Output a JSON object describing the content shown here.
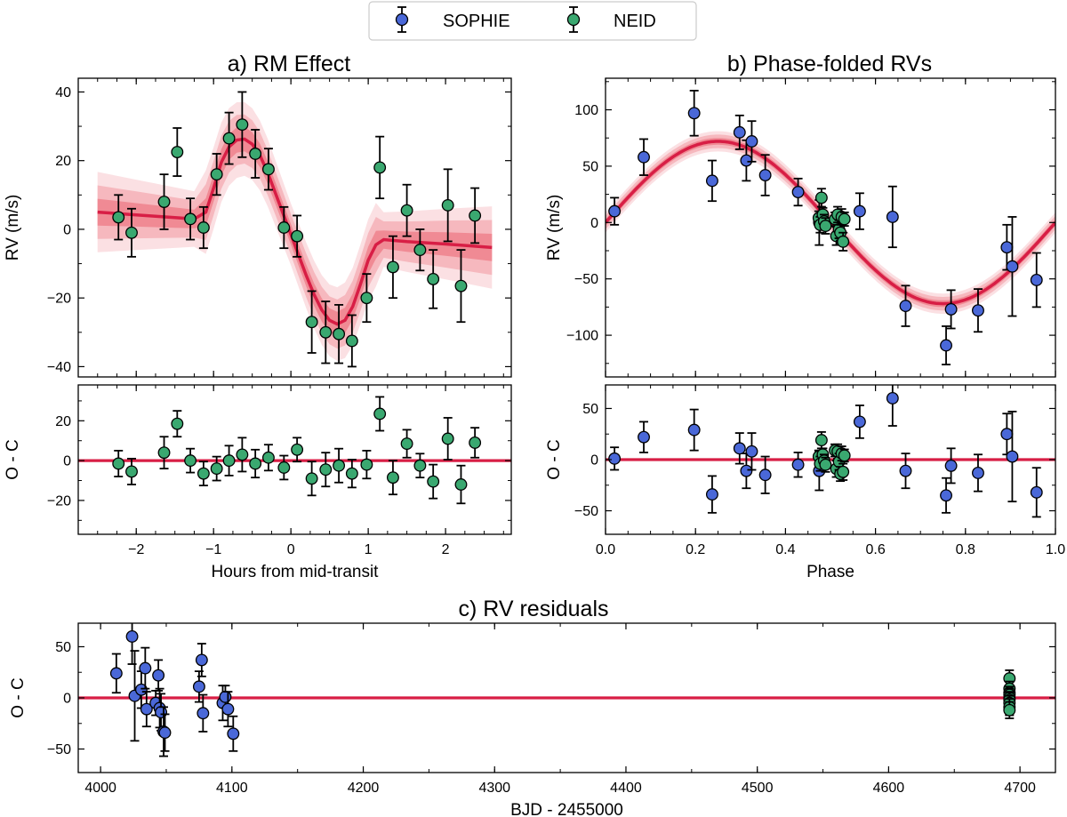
{
  "colors": {
    "sophie": "#4a68d8",
    "neid": "#3aa870",
    "model": "#d81e45",
    "band_inner": "#f08a94",
    "band_mid": "#f6b8be",
    "band_outer": "#fbe0e3"
  },
  "legend": {
    "placement": "top-center",
    "entries": [
      "SOPHIE",
      "NEID"
    ]
  },
  "chart_data": [
    {
      "id": "rm",
      "type": "scatter",
      "title": "a) RM Effect",
      "ylabel": "RV (m/s)",
      "xlim": [
        -2.75,
        2.85
      ],
      "ylim": [
        -43,
        44
      ],
      "xticks": [],
      "yticks": [
        -40,
        -20,
        0,
        20,
        40
      ],
      "series": [
        {
          "name": "NEID",
          "points": [
            {
              "x": -2.23,
              "y": 3.5,
              "err": 6.5
            },
            {
              "x": -2.06,
              "y": -1.0,
              "err": 7.0
            },
            {
              "x": -1.64,
              "y": 8.0,
              "err": 8.0
            },
            {
              "x": -1.47,
              "y": 22.5,
              "err": 7.0
            },
            {
              "x": -1.3,
              "y": 3.0,
              "err": 6.0
            },
            {
              "x": -1.13,
              "y": 0.5,
              "err": 6.0
            },
            {
              "x": -0.96,
              "y": 16.0,
              "err": 6.0
            },
            {
              "x": -0.8,
              "y": 26.5,
              "err": 7.5
            },
            {
              "x": -0.63,
              "y": 30.5,
              "err": 9.5
            },
            {
              "x": -0.46,
              "y": 22.0,
              "err": 7.0
            },
            {
              "x": -0.29,
              "y": 17.5,
              "err": 6.0
            },
            {
              "x": -0.09,
              "y": 0.5,
              "err": 6.0
            },
            {
              "x": 0.08,
              "y": -2.0,
              "err": 6.0
            },
            {
              "x": 0.27,
              "y": -27.0,
              "err": 9.0
            },
            {
              "x": 0.45,
              "y": -30.0,
              "err": 9.0
            },
            {
              "x": 0.62,
              "y": -30.5,
              "err": 8.5
            },
            {
              "x": 0.79,
              "y": -32.5,
              "err": 7.5
            },
            {
              "x": 0.98,
              "y": -20.0,
              "err": 7.0
            },
            {
              "x": 1.15,
              "y": 18.0,
              "err": 9.0
            },
            {
              "x": 1.32,
              "y": -11.0,
              "err": 9.0
            },
            {
              "x": 1.5,
              "y": 5.5,
              "err": 7.5
            },
            {
              "x": 1.67,
              "y": -6.0,
              "err": 6.0
            },
            {
              "x": 1.84,
              "y": -14.5,
              "err": 8.5
            },
            {
              "x": 2.03,
              "y": 7.0,
              "err": 10.5
            },
            {
              "x": 2.2,
              "y": -16.5,
              "err": 10.5
            },
            {
              "x": 2.38,
              "y": 4.0,
              "err": 8.0
            }
          ]
        }
      ],
      "model": {
        "x": [
          -2.5,
          -2.0,
          -1.5,
          -1.25,
          -1.1,
          -1.0,
          -0.9,
          -0.8,
          -0.7,
          -0.6,
          -0.5,
          -0.4,
          -0.3,
          -0.2,
          -0.1,
          0.0,
          0.1,
          0.2,
          0.3,
          0.4,
          0.5,
          0.6,
          0.7,
          0.8,
          0.9,
          1.0,
          1.1,
          1.2,
          1.5,
          2.0,
          2.6
        ],
        "y": [
          5.0,
          4.2,
          3.4,
          3.0,
          5.0,
          12.0,
          19.5,
          24.0,
          26.0,
          26.3,
          24.8,
          21.5,
          16.5,
          10.5,
          4.5,
          -1.5,
          -7.5,
          -13.5,
          -19.0,
          -23.5,
          -26.5,
          -27.6,
          -26.5,
          -22.5,
          -16.0,
          -9.0,
          -4.5,
          -3.0,
          -3.6,
          -4.3,
          -5.3
        ]
      }
    },
    {
      "id": "rm_resid",
      "type": "scatter",
      "xlabel": "Hours from mid-transit",
      "ylabel": "O - C",
      "xlim": [
        -2.75,
        2.85
      ],
      "ylim": [
        -37,
        38
      ],
      "xticks": [
        -2,
        -1,
        0,
        1,
        2
      ],
      "yticks": [
        -20,
        0,
        20
      ],
      "series": [
        {
          "name": "NEID",
          "points": [
            {
              "x": -2.23,
              "y": -1.5,
              "err": 6.5
            },
            {
              "x": -2.06,
              "y": -5.5,
              "err": 6.5
            },
            {
              "x": -1.64,
              "y": 4.0,
              "err": 8.0
            },
            {
              "x": -1.47,
              "y": 18.5,
              "err": 6.5
            },
            {
              "x": -1.3,
              "y": 0.0,
              "err": 6.0
            },
            {
              "x": -1.13,
              "y": -6.5,
              "err": 6.0
            },
            {
              "x": -0.96,
              "y": -4.0,
              "err": 6.0
            },
            {
              "x": -0.8,
              "y": 0.0,
              "err": 7.5
            },
            {
              "x": -0.63,
              "y": 3.0,
              "err": 8.5
            },
            {
              "x": -0.46,
              "y": -1.5,
              "err": 7.0
            },
            {
              "x": -0.29,
              "y": 1.5,
              "err": 6.5
            },
            {
              "x": -0.09,
              "y": -3.5,
              "err": 6.0
            },
            {
              "x": 0.08,
              "y": 5.5,
              "err": 6.0
            },
            {
              "x": 0.27,
              "y": -9.0,
              "err": 8.5
            },
            {
              "x": 0.45,
              "y": -4.5,
              "err": 8.5
            },
            {
              "x": 0.62,
              "y": -2.5,
              "err": 8.5
            },
            {
              "x": 0.79,
              "y": -6.5,
              "err": 7.0
            },
            {
              "x": 0.98,
              "y": -2.0,
              "err": 7.0
            },
            {
              "x": 1.15,
              "y": 23.5,
              "err": 8.5
            },
            {
              "x": 1.32,
              "y": -8.5,
              "err": 8.5
            },
            {
              "x": 1.5,
              "y": 8.5,
              "err": 7.0
            },
            {
              "x": 1.67,
              "y": -2.5,
              "err": 6.0
            },
            {
              "x": 1.84,
              "y": -10.5,
              "err": 8.5
            },
            {
              "x": 2.03,
              "y": 11.0,
              "err": 10.5
            },
            {
              "x": 2.2,
              "y": -12.0,
              "err": 9.5
            },
            {
              "x": 2.38,
              "y": 9.0,
              "err": 7.5
            }
          ]
        }
      ],
      "zero_line": true
    },
    {
      "id": "phase",
      "type": "scatter",
      "title": "b) Phase-folded RVs",
      "ylabel": "RV (m/s)",
      "xlim": [
        0.0,
        1.0
      ],
      "ylim": [
        -137,
        128
      ],
      "xticks": [],
      "yticks": [
        -100,
        -50,
        0,
        50,
        100
      ],
      "model": {
        "type": "sine",
        "amplitude": 72,
        "period": 1.0
      },
      "series": [
        {
          "name": "SOPHIE",
          "points": [
            {
              "x": 0.02,
              "y": 10,
              "err": 12
            },
            {
              "x": 0.085,
              "y": 58,
              "err": 16
            },
            {
              "x": 0.197,
              "y": 97,
              "err": 20
            },
            {
              "x": 0.237,
              "y": 37,
              "err": 18
            },
            {
              "x": 0.298,
              "y": 80,
              "err": 15
            },
            {
              "x": 0.313,
              "y": 55,
              "err": 18
            },
            {
              "x": 0.325,
              "y": 72,
              "err": 18
            },
            {
              "x": 0.355,
              "y": 42,
              "err": 18
            },
            {
              "x": 0.428,
              "y": 27,
              "err": 12
            },
            {
              "x": 0.475,
              "y": 0,
              "err": 20
            },
            {
              "x": 0.565,
              "y": 10,
              "err": 16
            },
            {
              "x": 0.638,
              "y": 5,
              "err": 27
            },
            {
              "x": 0.667,
              "y": -74,
              "err": 18
            },
            {
              "x": 0.757,
              "y": -109,
              "err": 17
            },
            {
              "x": 0.768,
              "y": -77,
              "err": 17
            },
            {
              "x": 0.828,
              "y": -78,
              "err": 19
            },
            {
              "x": 0.892,
              "y": -22,
              "err": 20
            },
            {
              "x": 0.904,
              "y": -39,
              "err": 44
            },
            {
              "x": 0.958,
              "y": -51,
              "err": 24
            }
          ]
        },
        {
          "name": "NEID",
          "points": [
            {
              "x": 0.474,
              "y": 4,
              "err": 6
            },
            {
              "x": 0.477,
              "y": -2,
              "err": 7
            },
            {
              "x": 0.48,
              "y": 22,
              "err": 8
            },
            {
              "x": 0.483,
              "y": 7,
              "err": 6
            },
            {
              "x": 0.486,
              "y": 1,
              "err": 6
            },
            {
              "x": 0.489,
              "y": -3,
              "err": 7
            },
            {
              "x": 0.51,
              "y": 3,
              "err": 6
            },
            {
              "x": 0.513,
              "y": -12,
              "err": 8
            },
            {
              "x": 0.516,
              "y": 7,
              "err": 7
            },
            {
              "x": 0.519,
              "y": -6,
              "err": 8
            },
            {
              "x": 0.522,
              "y": -9,
              "err": 7
            },
            {
              "x": 0.525,
              "y": 5,
              "err": 7
            },
            {
              "x": 0.528,
              "y": -17,
              "err": 8
            },
            {
              "x": 0.531,
              "y": 3,
              "err": 6
            }
          ]
        }
      ]
    },
    {
      "id": "phase_resid",
      "type": "scatter",
      "xlabel": "Phase",
      "ylabel": "O - C",
      "xlim": [
        0.0,
        1.0
      ],
      "ylim": [
        -73,
        73
      ],
      "xticks": [
        0.0,
        0.2,
        0.4,
        0.6,
        0.8,
        1.0
      ],
      "yticks": [
        -50,
        0,
        50
      ],
      "zero_line": true,
      "series": [
        {
          "name": "SOPHIE",
          "points": [
            {
              "x": 0.02,
              "y": 1,
              "err": 11
            },
            {
              "x": 0.085,
              "y": 22,
              "err": 15
            },
            {
              "x": 0.197,
              "y": 29,
              "err": 20
            },
            {
              "x": 0.237,
              "y": -34,
              "err": 18
            },
            {
              "x": 0.298,
              "y": 11,
              "err": 15
            },
            {
              "x": 0.313,
              "y": -11,
              "err": 17
            },
            {
              "x": 0.325,
              "y": 8,
              "err": 18
            },
            {
              "x": 0.355,
              "y": -15,
              "err": 18
            },
            {
              "x": 0.428,
              "y": -5,
              "err": 12
            },
            {
              "x": 0.475,
              "y": -11,
              "err": 19
            },
            {
              "x": 0.565,
              "y": 37,
              "err": 16
            },
            {
              "x": 0.638,
              "y": 60,
              "err": 27
            },
            {
              "x": 0.667,
              "y": -11,
              "err": 17
            },
            {
              "x": 0.757,
              "y": -35,
              "err": 17
            },
            {
              "x": 0.768,
              "y": -6,
              "err": 17
            },
            {
              "x": 0.828,
              "y": -13,
              "err": 18
            },
            {
              "x": 0.892,
              "y": 25,
              "err": 20
            },
            {
              "x": 0.904,
              "y": 3,
              "err": 44
            },
            {
              "x": 0.958,
              "y": -32,
              "err": 24
            }
          ]
        },
        {
          "name": "NEID",
          "points": [
            {
              "x": 0.474,
              "y": 3,
              "err": 6
            },
            {
              "x": 0.477,
              "y": -4,
              "err": 7
            },
            {
              "x": 0.48,
              "y": 19,
              "err": 8
            },
            {
              "x": 0.483,
              "y": 5,
              "err": 6
            },
            {
              "x": 0.486,
              "y": -1,
              "err": 6
            },
            {
              "x": 0.489,
              "y": -5,
              "err": 7
            },
            {
              "x": 0.51,
              "y": 9,
              "err": 6
            },
            {
              "x": 0.513,
              "y": -9,
              "err": 8
            },
            {
              "x": 0.516,
              "y": 8,
              "err": 7
            },
            {
              "x": 0.519,
              "y": -2,
              "err": 8
            },
            {
              "x": 0.522,
              "y": -14,
              "err": 7
            },
            {
              "x": 0.525,
              "y": 6,
              "err": 7
            },
            {
              "x": 0.528,
              "y": -12,
              "err": 8
            },
            {
              "x": 0.531,
              "y": 4,
              "err": 6
            }
          ]
        }
      ]
    },
    {
      "id": "time_resid",
      "type": "scatter",
      "title": "c) RV residuals",
      "xlabel": "BJD - 2455000",
      "ylabel": "O - C",
      "xlim": [
        3983,
        4727
      ],
      "ylim": [
        -73,
        73
      ],
      "xticks": [
        4000,
        4100,
        4200,
        4300,
        4400,
        4500,
        4600,
        4700
      ],
      "yticks": [
        -50,
        0,
        50
      ],
      "zero_line": true,
      "series": [
        {
          "name": "SOPHIE",
          "points": [
            {
              "x": 4012,
              "y": 24,
              "err": 19
            },
            {
              "x": 4024,
              "y": 60,
              "err": 27
            },
            {
              "x": 4026,
              "y": 2,
              "err": 44
            },
            {
              "x": 4031,
              "y": 8,
              "err": 18
            },
            {
              "x": 4034,
              "y": 29,
              "err": 20
            },
            {
              "x": 4035,
              "y": -11,
              "err": 17
            },
            {
              "x": 4042,
              "y": -5,
              "err": 12
            },
            {
              "x": 4044,
              "y": 22,
              "err": 15
            },
            {
              "x": 4045,
              "y": -10,
              "err": 19
            },
            {
              "x": 4046,
              "y": -14,
              "err": 18
            },
            {
              "x": 4048,
              "y": -33,
              "err": 24
            },
            {
              "x": 4049,
              "y": -34,
              "err": 18
            },
            {
              "x": 4075,
              "y": 11,
              "err": 15
            },
            {
              "x": 4077,
              "y": 37,
              "err": 16
            },
            {
              "x": 4078,
              "y": -15,
              "err": 18
            },
            {
              "x": 4093,
              "y": -5,
              "err": 17
            },
            {
              "x": 4095,
              "y": 1,
              "err": 11
            },
            {
              "x": 4097,
              "y": -11,
              "err": 17
            },
            {
              "x": 4101,
              "y": -35,
              "err": 17
            }
          ]
        },
        {
          "name": "NEID",
          "points": [
            {
              "x": 4692,
              "y": 19,
              "err": 8
            },
            {
              "x": 4692,
              "y": 9,
              "err": 7
            },
            {
              "x": 4692,
              "y": 5,
              "err": 6
            },
            {
              "x": 4692,
              "y": 3,
              "err": 6
            },
            {
              "x": 4692,
              "y": 0,
              "err": 6
            },
            {
              "x": 4692,
              "y": -2,
              "err": 7
            },
            {
              "x": 4692,
              "y": -5,
              "err": 7
            },
            {
              "x": 4692,
              "y": -9,
              "err": 8
            },
            {
              "x": 4692,
              "y": -12,
              "err": 8
            }
          ]
        }
      ]
    }
  ]
}
